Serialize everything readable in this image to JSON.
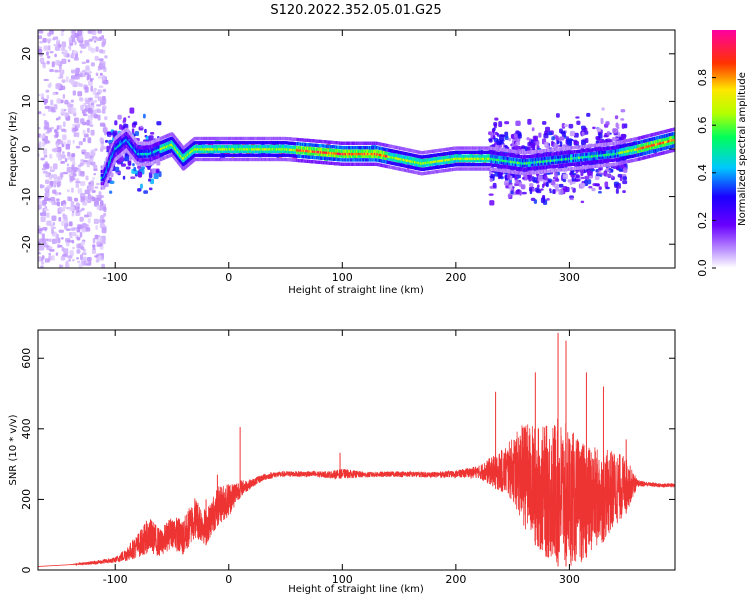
{
  "title": "S120.2022.352.05.01.G25",
  "chart_data": [
    {
      "type": "heatmap",
      "name": "spectrogram",
      "xlabel": "Height of straight line (km)",
      "ylabel": "Frequency (Hz)",
      "xlim": [
        -168,
        393
      ],
      "ylim": [
        -25,
        25
      ],
      "xticks": [
        -100,
        0,
        100,
        200,
        300
      ],
      "yticks": [
        -20,
        -10,
        0,
        10,
        20
      ],
      "grid": false,
      "colorbar": {
        "label": "Normalized spectral amplitude",
        "range": [
          0,
          1
        ],
        "ticks": [
          0.0,
          0.2,
          0.4,
          0.6,
          0.8
        ],
        "colormap": [
          "#ffffff",
          "#7f00ff",
          "#0000ff",
          "#00ffff",
          "#00ff00",
          "#ffff00",
          "#ff0000",
          "#ff00ff"
        ]
      },
      "ridge": {
        "x": [
          -110,
          -100,
          -90,
          -80,
          -70,
          -60,
          -50,
          -40,
          -30,
          -20,
          0,
          50,
          100,
          130,
          150,
          170,
          200,
          230,
          260,
          300,
          340,
          360,
          393
        ],
        "frequency": [
          -6,
          0,
          2,
          -1,
          -1,
          0,
          1,
          -2,
          0,
          0,
          0,
          0,
          -1,
          -1,
          -2,
          -3,
          -2,
          -2,
          -3,
          -2,
          -1,
          0,
          2
        ]
      },
      "regions": [
        {
          "x_range": [
            -168,
            -108
          ],
          "frequency_range": [
            -25,
            25
          ],
          "amplitude": 0.05
        },
        {
          "x_range": [
            -108,
            -60
          ],
          "frequency_range": [
            -8,
            10
          ],
          "amplitude": 0.25
        },
        {
          "x_range": [
            -60,
            230
          ],
          "frequency_range": [
            -2,
            2
          ],
          "amplitude": 0.7
        },
        {
          "x_range": [
            230,
            350
          ],
          "frequency_range": [
            -12,
            10
          ],
          "amplitude": 0.2
        },
        {
          "x_range": [
            350,
            393
          ],
          "frequency_range": [
            -1,
            3
          ],
          "amplitude": 0.6
        }
      ]
    },
    {
      "type": "line",
      "name": "snr",
      "xlabel": "Height of straight line (km)",
      "ylabel": "SNR (10 * v/v)",
      "xlim": [
        -168,
        393
      ],
      "ylim": [
        0,
        680
      ],
      "xticks": [
        -100,
        0,
        100,
        200,
        300
      ],
      "yticks": [
        0,
        200,
        400,
        600
      ],
      "grid": false,
      "color": "#ee3333",
      "x": [
        -168,
        -140,
        -120,
        -100,
        -90,
        -80,
        -70,
        -60,
        -50,
        -40,
        -30,
        -20,
        -10,
        0,
        10,
        20,
        30,
        40,
        50,
        70,
        90,
        100,
        120,
        150,
        180,
        200,
        220,
        240,
        250,
        260,
        270,
        280,
        290,
        300,
        310,
        320,
        330,
        340,
        350,
        360,
        370,
        380,
        393
      ],
      "values": [
        10,
        15,
        20,
        28,
        45,
        70,
        100,
        75,
        110,
        90,
        150,
        120,
        180,
        200,
        230,
        245,
        262,
        270,
        272,
        272,
        270,
        273,
        270,
        272,
        270,
        272,
        278,
        280,
        285,
        270,
        240,
        220,
        220,
        210,
        190,
        200,
        210,
        230,
        240,
        245,
        243,
        240,
        240
      ],
      "spread": [
        0,
        0,
        5,
        8,
        20,
        35,
        50,
        40,
        45,
        55,
        60,
        50,
        55,
        50,
        25,
        12,
        10,
        8,
        8,
        8,
        10,
        14,
        8,
        8,
        8,
        10,
        18,
        60,
        90,
        150,
        170,
        190,
        210,
        200,
        170,
        150,
        130,
        110,
        80,
        10,
        6,
        6,
        6
      ],
      "peaks": [
        {
          "x": -74,
          "value": 130
        },
        {
          "x": -20,
          "value": 200
        },
        {
          "x": -10,
          "value": 270
        },
        {
          "x": 10,
          "value": 405
        },
        {
          "x": 98,
          "value": 332
        },
        {
          "x": 235,
          "value": 505
        },
        {
          "x": 290,
          "value": 672
        },
        {
          "x": 297,
          "value": 650
        },
        {
          "x": 270,
          "value": 560
        },
        {
          "x": 315,
          "value": 560
        },
        {
          "x": 330,
          "value": 520
        },
        {
          "x": 350,
          "value": 370
        }
      ]
    }
  ]
}
